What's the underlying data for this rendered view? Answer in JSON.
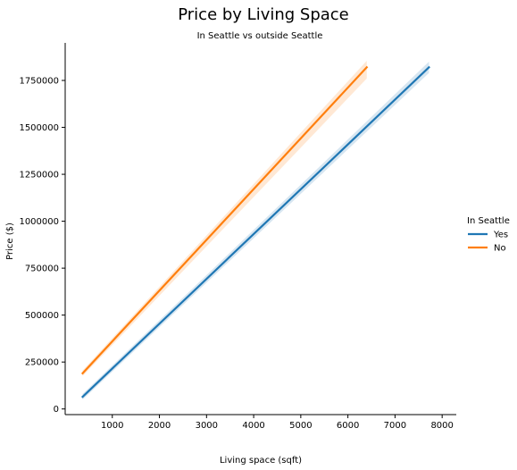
{
  "chart_data": {
    "type": "line",
    "title": "Price by Living Space",
    "subtitle": "In Seattle vs outside Seattle",
    "xlabel": "Living space (sqft)",
    "ylabel": "Price ($)",
    "xlim": [
      0,
      8300
    ],
    "ylim": [
      -30000,
      1950000
    ],
    "x_ticks": [
      1000,
      2000,
      3000,
      4000,
      5000,
      6000,
      7000,
      8000
    ],
    "y_ticks": [
      0,
      250000,
      500000,
      750000,
      1000000,
      1250000,
      1500000,
      1750000
    ],
    "grid": false,
    "legend": {
      "title": "In Seattle",
      "placement": "right"
    },
    "series": [
      {
        "name": "Yes",
        "color": "#1f77b4",
        "x": [
          370,
          7720
        ],
        "y": [
          65000,
          1820000
        ],
        "ci_upper": [
          80000,
          1850000
        ],
        "ci_lower": [
          50000,
          1790000
        ]
      },
      {
        "name": "No",
        "color": "#ff7f0e",
        "x": [
          370,
          6400
        ],
        "y": [
          190000,
          1820000
        ],
        "ci_upper": [
          205000,
          1855000
        ],
        "ci_lower": [
          175000,
          1760000
        ]
      }
    ]
  }
}
